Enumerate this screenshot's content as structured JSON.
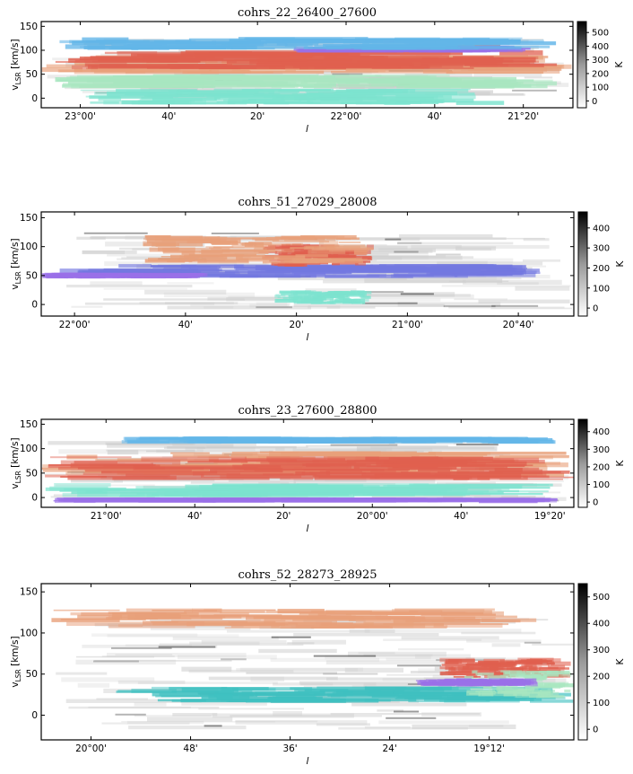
{
  "figure": {
    "colorbar_label": "K",
    "xlabel": "l",
    "ylabel_main": "v",
    "ylabel_sub": "LSR",
    "ylabel_unit": " [km/s]"
  },
  "chart_data": [
    {
      "type": "heatmap",
      "title": "cohrs_22_26400_27600",
      "xlabel": "l",
      "ylabel": "vLSR [km/s]",
      "ylim": [
        -20,
        160
      ],
      "yticks": [
        0,
        50,
        100,
        150
      ],
      "xlim": [
        23.1467,
        21.1467
      ],
      "xticks": [
        {
          "value": 23.0,
          "label": "23°00'"
        },
        {
          "value": 22.6667,
          "label": "40'"
        },
        {
          "value": 22.3333,
          "label": "20'"
        },
        {
          "value": 22.0,
          "label": "22°00'"
        },
        {
          "value": 21.6667,
          "label": "40'"
        },
        {
          "value": 21.3333,
          "label": "21°20'"
        }
      ],
      "colorbar": {
        "label": "K",
        "min": -50,
        "max": 580,
        "ticks": [
          0,
          100,
          200,
          300,
          400,
          500
        ]
      },
      "emission_layers": [
        {
          "color": "#c9c9c9",
          "vmin": 0,
          "vmax": 125,
          "lmin": 23.1467,
          "lmax": 21.1467
        },
        {
          "color": "#7de3cf",
          "vmin": -15,
          "vmax": 20,
          "lmin": 23.0,
          "lmax": 21.4
        },
        {
          "color": "#a8e6c0",
          "vmin": 20,
          "vmax": 50,
          "lmin": 23.1,
          "lmax": 21.2
        },
        {
          "color": "#e8a07a",
          "vmin": 50,
          "vmax": 90,
          "lmin": 23.1467,
          "lmax": 21.1467
        },
        {
          "color": "#e0604f",
          "vmin": 60,
          "vmax": 100,
          "lmin": 23.1467,
          "lmax": 21.2
        },
        {
          "color": "#9a70e8",
          "vmin": 95,
          "vmax": 110,
          "lmin": 22.2,
          "lmax": 21.3
        },
        {
          "color": "#63b6e8",
          "vmin": 100,
          "vmax": 128,
          "lmin": 23.1,
          "lmax": 21.2
        }
      ]
    },
    {
      "type": "heatmap",
      "title": "cohrs_51_27029_28008",
      "xlabel": "l",
      "ylabel": "vLSR [km/s]",
      "ylim": [
        -20,
        160
      ],
      "yticks": [
        0,
        50,
        100,
        150
      ],
      "xlim": [
        22.1,
        20.5
      ],
      "xticks": [
        {
          "value": 22.0,
          "label": "22°00'"
        },
        {
          "value": 21.6667,
          "label": "40'"
        },
        {
          "value": 21.3333,
          "label": "20'"
        },
        {
          "value": 21.0,
          "label": "21°00'"
        },
        {
          "value": 20.6667,
          "label": "20°40'"
        }
      ],
      "colorbar": {
        "label": "K",
        "min": -40,
        "max": 480,
        "ticks": [
          0,
          100,
          200,
          300,
          400
        ]
      },
      "emission_layers": [
        {
          "color": "#cfcfcf",
          "vmin": -10,
          "vmax": 125,
          "lmin": 22.05,
          "lmax": 20.5
        },
        {
          "color": "#7de3cf",
          "vmin": 0,
          "vmax": 25,
          "lmin": 21.4,
          "lmax": 21.1
        },
        {
          "color": "#7378e0",
          "vmin": 45,
          "vmax": 70,
          "lmin": 22.05,
          "lmax": 20.6
        },
        {
          "color": "#9a70e8",
          "vmin": 45,
          "vmax": 55,
          "lmin": 22.1,
          "lmax": 21.6
        },
        {
          "color": "#e0604f",
          "vmin": 65,
          "vmax": 105,
          "lmin": 21.45,
          "lmax": 21.1
        },
        {
          "color": "#e8a07a",
          "vmin": 70,
          "vmax": 120,
          "lmin": 21.8,
          "lmax": 21.1
        }
      ]
    },
    {
      "type": "heatmap",
      "title": "cohrs_23_27600_28800",
      "xlabel": "l",
      "ylabel": "vLSR [km/s]",
      "ylim": [
        -20,
        160
      ],
      "yticks": [
        0,
        50,
        100,
        150
      ],
      "xlim": [
        21.2433,
        19.2433
      ],
      "xticks": [
        {
          "value": 21.0,
          "label": "21°00'"
        },
        {
          "value": 20.6667,
          "label": "40'"
        },
        {
          "value": 20.3333,
          "label": "20'"
        },
        {
          "value": 20.0,
          "label": "20°00'"
        },
        {
          "value": 19.6667,
          "label": "40'"
        },
        {
          "value": 19.3333,
          "label": "19°20'"
        }
      ],
      "colorbar": {
        "label": "K",
        "min": -30,
        "max": 470,
        "ticks": [
          0,
          100,
          200,
          300,
          400
        ]
      },
      "emission_layers": [
        {
          "color": "#c9c9c9",
          "vmin": -10,
          "vmax": 125,
          "lmin": 21.2433,
          "lmax": 19.2433
        },
        {
          "color": "#7de3cf",
          "vmin": 0,
          "vmax": 30,
          "lmin": 21.2433,
          "lmax": 19.3
        },
        {
          "color": "#e8a07a",
          "vmin": 40,
          "vmax": 95,
          "lmin": 21.2433,
          "lmax": 19.2433
        },
        {
          "color": "#e0604f",
          "vmin": 35,
          "vmax": 85,
          "lmin": 21.2433,
          "lmax": 19.2433
        },
        {
          "color": "#63b6e8",
          "vmin": 110,
          "vmax": 125,
          "lmin": 20.95,
          "lmax": 19.3
        },
        {
          "color": "#9a70e8",
          "vmin": -10,
          "vmax": 0,
          "lmin": 21.2,
          "lmax": 19.3
        }
      ]
    },
    {
      "type": "heatmap",
      "title": "cohrs_52_28273_28925",
      "xlabel": "l",
      "ylabel": "vLSR [km/s]",
      "ylim": [
        -30,
        160
      ],
      "yticks": [
        0,
        50,
        100,
        150
      ],
      "xlim": [
        20.1,
        19.03
      ],
      "xticks": [
        {
          "value": 20.0,
          "label": "20°00'"
        },
        {
          "value": 19.8,
          "label": "48'"
        },
        {
          "value": 19.6,
          "label": "36'"
        },
        {
          "value": 19.4,
          "label": "24'"
        },
        {
          "value": 19.2,
          "label": "19°12'"
        }
      ],
      "colorbar": {
        "label": "K",
        "min": -40,
        "max": 550,
        "ticks": [
          0,
          100,
          200,
          300,
          400,
          500
        ]
      },
      "emission_layers": [
        {
          "color": "#d0d0d0",
          "vmin": -20,
          "vmax": 120,
          "lmin": 20.08,
          "lmax": 19.03
        },
        {
          "color": "#e8a07a",
          "vmin": 105,
          "vmax": 130,
          "lmin": 20.08,
          "lmax": 19.1
        },
        {
          "color": "#3fc0c0",
          "vmin": 15,
          "vmax": 35,
          "lmin": 19.95,
          "lmax": 19.03
        },
        {
          "color": "#e0604f",
          "vmin": 45,
          "vmax": 70,
          "lmin": 19.3,
          "lmax": 19.03
        },
        {
          "color": "#a8e6c0",
          "vmin": 20,
          "vmax": 55,
          "lmin": 19.25,
          "lmax": 19.03
        },
        {
          "color": "#9a70e8",
          "vmin": 35,
          "vmax": 45,
          "lmin": 19.35,
          "lmax": 19.1
        }
      ]
    }
  ]
}
